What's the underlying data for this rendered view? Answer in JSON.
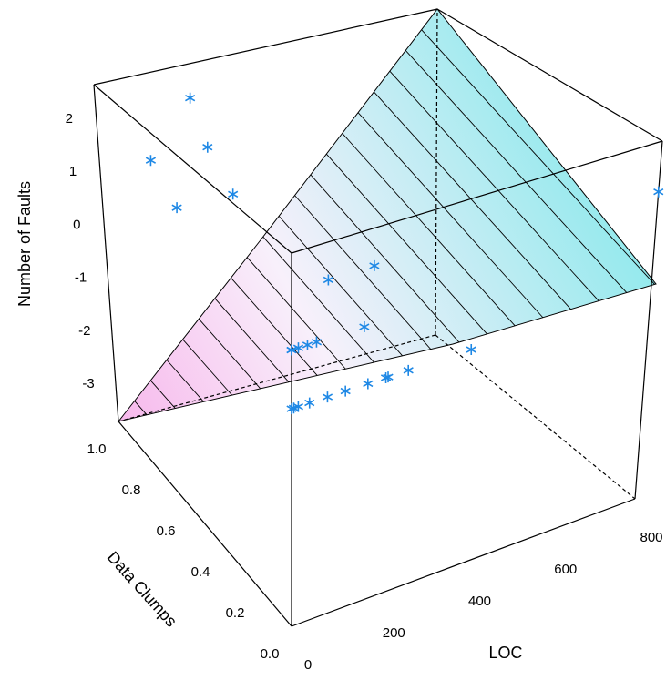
{
  "chart_data": {
    "type": "scatter3d",
    "xlabel": "LOC",
    "ylabel": "Data Clumps",
    "zlabel": "Number of Faults",
    "xlim": [
      0,
      800
    ],
    "ylim": [
      0,
      1
    ],
    "zlim": [
      -3.7,
      2.65
    ],
    "xticks": [
      0,
      200,
      400,
      600,
      800
    ],
    "yticks": [
      {
        "value": 0,
        "label": "0.0"
      },
      0.2,
      0.4,
      0.6,
      0.8,
      {
        "value": 1,
        "label": "1.0"
      }
    ],
    "zticks": [
      -3,
      -2,
      -1,
      0,
      1,
      2
    ],
    "color": "#1e88e5",
    "series": [
      {
        "x": [
          0,
          5,
          15,
          40,
          80,
          120,
          170,
          210,
          215,
          260,
          0,
          0,
          15,
          35,
          55,
          160,
          400,
          80,
          180,
          800,
          120,
          175,
          220,
          255,
          310
        ],
        "y": [
          0,
          0,
          0,
          0,
          0,
          0,
          0,
          0,
          0,
          0,
          0,
          0,
          0,
          0,
          0,
          0,
          0,
          0,
          0,
          0,
          1,
          1,
          1,
          1,
          1
        ],
        "z": [
          0,
          0,
          0,
          0,
          0,
          0,
          0,
          0,
          0,
          0,
          1,
          1,
          1,
          1,
          1,
          1,
          0,
          2,
          2,
          1.75,
          1,
          0,
          2,
          1,
          0
        ]
      }
    ]
  }
}
